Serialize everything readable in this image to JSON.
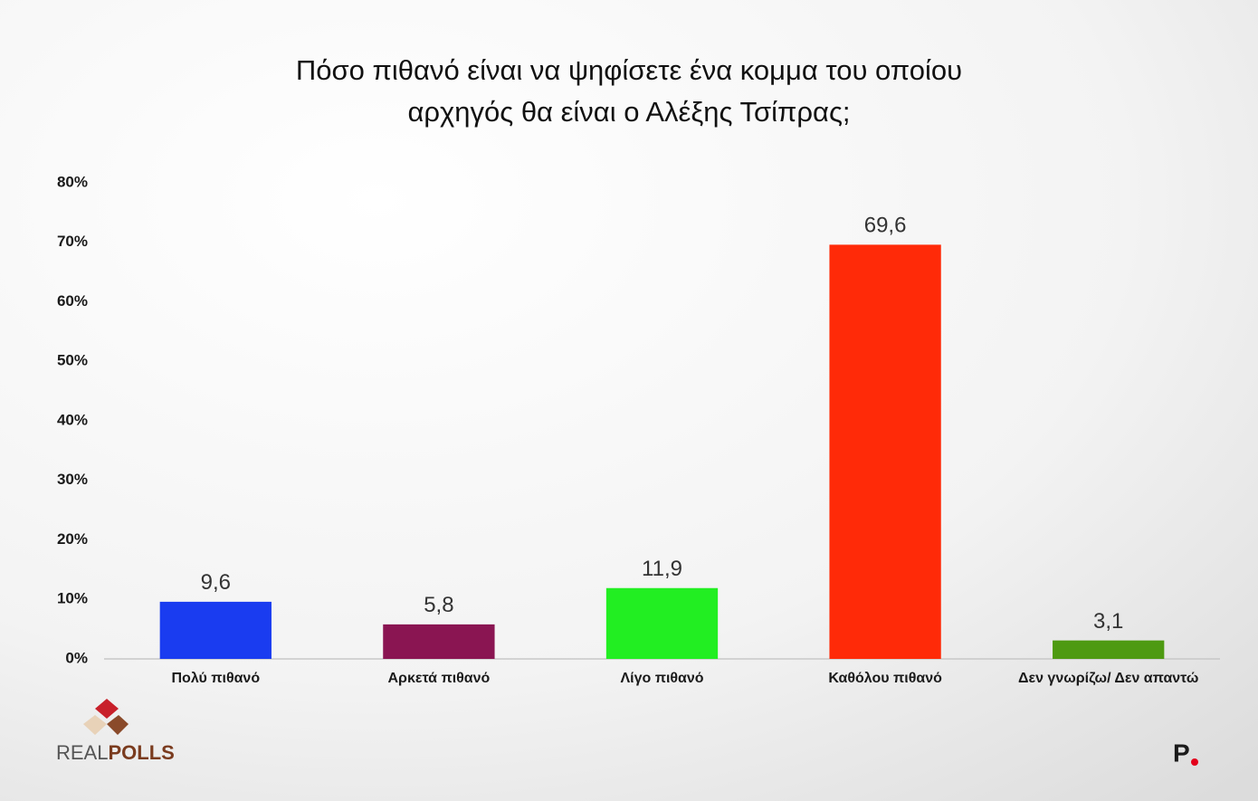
{
  "chart_data": {
    "type": "bar",
    "title": [
      "Πόσο πιθανό είναι να ψηφίσετε ένα κομμα του οποίου",
      "αρχηγός θα είναι ο Αλέξης Τσίπρας;"
    ],
    "categories": [
      "Πολύ πιθανό",
      "Αρκετά πιθανό",
      "Λίγο πιθανό",
      "Καθόλου πιθανό",
      "Δεν γνωρίζω/ Δεν απαντώ"
    ],
    "values": [
      9.6,
      5.8,
      11.9,
      69.6,
      3.1
    ],
    "value_labels": [
      "9,6",
      "5,8",
      "11,9",
      "69,6",
      "3,1"
    ],
    "colors": [
      "#1a3cf0",
      "#8a1552",
      "#22ee22",
      "#ff2a08",
      "#4e9a12"
    ],
    "ylim": [
      0,
      80
    ],
    "yticks": [
      {
        "value": 0,
        "label": "0%"
      },
      {
        "value": 10,
        "label": "10%"
      },
      {
        "value": 20,
        "label": "20%"
      },
      {
        "value": 30,
        "label": "30%"
      },
      {
        "value": 40,
        "label": "40%"
      },
      {
        "value": 50,
        "label": "50%"
      },
      {
        "value": 60,
        "label": "60%"
      },
      {
        "value": 70,
        "label": "70%"
      },
      {
        "value": 80,
        "label": "80%"
      }
    ],
    "grid": false
  },
  "logos": {
    "left": [
      "REAL",
      "POLLS"
    ],
    "right": "P"
  }
}
